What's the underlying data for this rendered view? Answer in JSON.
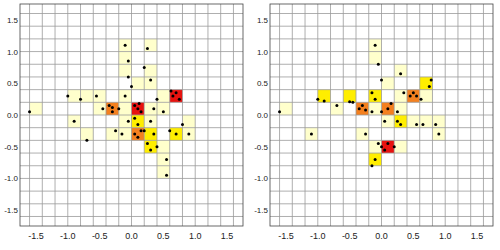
{
  "chart_data": [
    {
      "type": "heatmap",
      "xlim": [
        -1.75,
        1.75
      ],
      "ylim": [
        -1.75,
        1.75
      ],
      "xticks": [
        -1.5,
        {
          "value": -1.0,
          "label": "-1.0"
        },
        -0.5,
        {
          "value": 0.0,
          "label": "0.0"
        },
        0.5,
        {
          "value": 1.0,
          "label": "1.0"
        },
        1.5
      ],
      "yticks": [
        -1.5,
        {
          "value": -1.0,
          "label": "-1.0"
        },
        -0.5,
        {
          "value": 0.0,
          "label": "0.0"
        },
        0.5,
        {
          "value": 1.0,
          "label": "1.0"
        },
        1.5
      ],
      "grid": true,
      "bins": [
        -1.8,
        -1.6,
        -1.4,
        -1.2,
        -1.0,
        -0.8,
        -0.6,
        -0.4,
        -0.2,
        0.0,
        0.2,
        0.4,
        0.6,
        0.8,
        1.0,
        1.2,
        1.4,
        1.6,
        1.8
      ],
      "color_scale": {
        "values": [
          1,
          2,
          3,
          4
        ],
        "colors": [
          "#ffffcc",
          "#ffee00",
          "#f4801f",
          "#e8120f"
        ]
      },
      "cells": {
        "x": [
          -1.6,
          -1.0,
          -0.8,
          -0.6,
          -1.0,
          -0.8,
          -0.6,
          -0.4,
          -0.2,
          -0.4,
          -0.2,
          -0.2,
          -0.2,
          -0.2,
          0.0,
          0.0,
          0.0,
          0.2,
          0.2,
          0.4,
          0.2,
          0.2,
          0.2,
          0.4,
          0.4,
          0.6,
          0.4,
          0.4,
          0.6,
          0.8,
          0.8,
          0.2,
          -0.2,
          0.0,
          -0.2,
          0.2
        ],
        "y": [
          0.0,
          0.2,
          0.2,
          0.2,
          -0.2,
          -0.4,
          0.0,
          0.0,
          0.0,
          -0.4,
          -0.4,
          1.0,
          0.8,
          0.6,
          0.4,
          0.0,
          -0.4,
          -0.4,
          -0.6,
          -0.6,
          1.0,
          0.4,
          0.0,
          0.2,
          0.0,
          -0.4,
          -0.8,
          -1.0,
          0.2,
          -0.2,
          -0.4,
          0.6,
          -0.2,
          -0.2,
          0.2,
          -0.2
        ],
        "values": [
          1,
          1,
          1,
          1,
          1,
          1,
          1,
          3,
          1,
          1,
          1,
          1,
          1,
          1,
          1,
          4,
          3,
          2,
          2,
          1,
          1,
          1,
          1,
          1,
          1,
          2,
          1,
          1,
          4,
          1,
          1,
          1,
          1,
          2,
          1,
          1
        ]
      },
      "points": {
        "x": [
          -1.6,
          -1.0,
          -0.8,
          -0.55,
          -0.9,
          -0.7,
          -0.45,
          -0.35,
          -0.3,
          -0.2,
          -0.25,
          -0.15,
          -0.1,
          -0.05,
          -0.05,
          0.0,
          0.05,
          0.1,
          0.15,
          0.05,
          0.1,
          0.2,
          0.25,
          0.3,
          0.35,
          0.4,
          0.25,
          0.3,
          0.35,
          0.4,
          0.5,
          0.6,
          0.55,
          0.55,
          0.65,
          0.7,
          0.75,
          0.62,
          0.8,
          0.9,
          0.2,
          -0.05,
          0.1,
          -0.1,
          0.3,
          -0.3,
          0.12,
          0.15,
          0.7,
          0.05
        ],
        "y": [
          0.05,
          0.3,
          0.25,
          0.3,
          -0.1,
          -0.4,
          0.1,
          0.15,
          0.05,
          0.1,
          -0.25,
          -0.3,
          1.1,
          0.85,
          0.6,
          0.45,
          0.15,
          0.1,
          0.05,
          -0.3,
          -0.35,
          -0.25,
          -0.45,
          -0.55,
          -0.3,
          -0.5,
          1.05,
          0.55,
          0.1,
          0.25,
          0.05,
          -0.25,
          -0.7,
          -0.95,
          0.3,
          0.35,
          0.25,
          0.38,
          -0.15,
          -0.3,
          0.75,
          -0.1,
          -0.15,
          0.3,
          -0.1,
          0.12,
          0.18,
          -0.25,
          -0.3,
          -0.05
        ]
      }
    },
    {
      "type": "heatmap",
      "xlim": [
        -1.75,
        1.75
      ],
      "ylim": [
        -1.75,
        1.75
      ],
      "xticks": [
        -1.5,
        {
          "value": -1.0,
          "label": "-1.0"
        },
        -0.5,
        {
          "value": 0.0,
          "label": "0.0"
        },
        0.5,
        {
          "value": 1.0,
          "label": "1.0"
        },
        1.5
      ],
      "yticks": [
        -1.5,
        {
          "value": -1.0,
          "label": "-1.0"
        },
        -0.5,
        {
          "value": 0.0,
          "label": "0.0"
        },
        0.5,
        {
          "value": 1.0,
          "label": "1.0"
        },
        1.5
      ],
      "grid": true,
      "bins": [
        -1.8,
        -1.6,
        -1.4,
        -1.2,
        -1.0,
        -0.8,
        -0.6,
        -0.4,
        -0.2,
        0.0,
        0.2,
        0.4,
        0.6,
        0.8,
        1.0,
        1.2,
        1.4,
        1.6,
        1.8
      ],
      "color_scale": {
        "values": [
          1,
          2,
          3,
          4
        ],
        "colors": [
          "#ffffcc",
          "#ffee00",
          "#f4801f",
          "#e8120f"
        ]
      },
      "cells": {
        "x": [
          -1.6,
          -1.0,
          -0.8,
          -1.2,
          -0.6,
          -0.4,
          -0.4,
          -0.2,
          -0.2,
          -0.2,
          0.0,
          0.0,
          -0.2,
          0.0,
          0.2,
          0.2,
          0.2,
          0.2,
          0.4,
          0.6,
          0.6,
          0.8,
          0.8,
          -0.2,
          0.4,
          0.6,
          -0.2,
          0.2,
          0.0
        ],
        "y": [
          0.0,
          0.2,
          0.0,
          -0.4,
          0.2,
          0.0,
          -0.4,
          0.2,
          1.0,
          0.8,
          0.4,
          0.0,
          -0.6,
          -0.6,
          -0.6,
          -0.2,
          0.6,
          0.2,
          0.2,
          0.2,
          0.4,
          -0.2,
          -0.4,
          -0.8,
          -0.2,
          -0.2,
          0.0,
          0.0,
          -0.2
        ],
        "values": [
          1,
          2,
          1,
          1,
          2,
          3,
          1,
          2,
          1,
          1,
          1,
          3,
          1,
          4,
          1,
          2,
          1,
          1,
          3,
          1,
          2,
          1,
          1,
          2,
          1,
          1,
          1,
          1,
          1
        ]
      },
      "points": {
        "x": [
          -1.6,
          -1.0,
          -0.9,
          -0.7,
          -1.1,
          -0.5,
          -0.45,
          -0.35,
          -0.3,
          -0.25,
          -0.15,
          -0.1,
          -0.05,
          0.0,
          -0.1,
          0.0,
          0.1,
          0.15,
          -0.05,
          0.0,
          0.05,
          0.1,
          0.2,
          0.25,
          0.3,
          0.3,
          0.35,
          0.45,
          0.5,
          0.55,
          0.62,
          0.75,
          0.78,
          0.85,
          0.9,
          -0.15,
          -0.1,
          0.55,
          0.65,
          -0.15,
          0.25,
          0.05,
          -0.25
        ],
        "y": [
          0.05,
          0.25,
          0.22,
          0.15,
          -0.3,
          0.21,
          0.2,
          0.1,
          0.15,
          -0.3,
          0.35,
          1.1,
          0.8,
          0.55,
          0.25,
          0.05,
          0.1,
          0.18,
          -0.45,
          -0.5,
          -0.55,
          -0.45,
          -0.5,
          -0.1,
          -0.15,
          0.65,
          0.35,
          0.3,
          0.35,
          0.3,
          0.25,
          0.45,
          0.55,
          -0.15,
          -0.3,
          -0.8,
          -0.7,
          -0.15,
          -0.15,
          0.05,
          0.05,
          -0.1,
          0.08
        ]
      }
    }
  ]
}
